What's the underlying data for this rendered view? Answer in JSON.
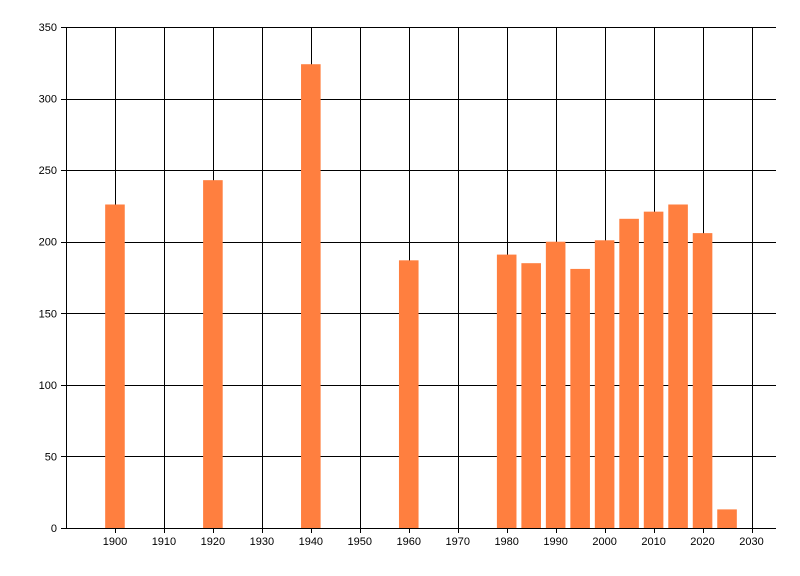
{
  "chart_data": {
    "type": "bar",
    "title": "",
    "xlabel": "",
    "ylabel": "",
    "x": [
      1900,
      1920,
      1940,
      1960,
      1980,
      1985,
      1990,
      1995,
      2000,
      2005,
      2010,
      2015,
      2020,
      2025
    ],
    "values": [
      226,
      243,
      324,
      187,
      191,
      185,
      200,
      181,
      201,
      216,
      221,
      226,
      206,
      13
    ],
    "xlim": [
      1890,
      2035
    ],
    "ylim": [
      0,
      350
    ],
    "xticks": [
      1900,
      1910,
      1920,
      1930,
      1940,
      1950,
      1960,
      1970,
      1980,
      1990,
      2000,
      2010,
      2020,
      2030
    ],
    "yticks": [
      0,
      50,
      100,
      150,
      200,
      250,
      300,
      350
    ],
    "xtick_labels": [
      "1900",
      "1910",
      "1920",
      "1930",
      "1940",
      "1950",
      "1960",
      "1970",
      "1980",
      "1990",
      "2000",
      "2010",
      "2020",
      "2030"
    ],
    "ytick_labels": [
      "0",
      "50",
      "100",
      "150",
      "200",
      "250",
      "300",
      "350"
    ],
    "grid": true,
    "legend": "none",
    "bar_color": "#ff7f3f",
    "grid_color": "#000000"
  }
}
